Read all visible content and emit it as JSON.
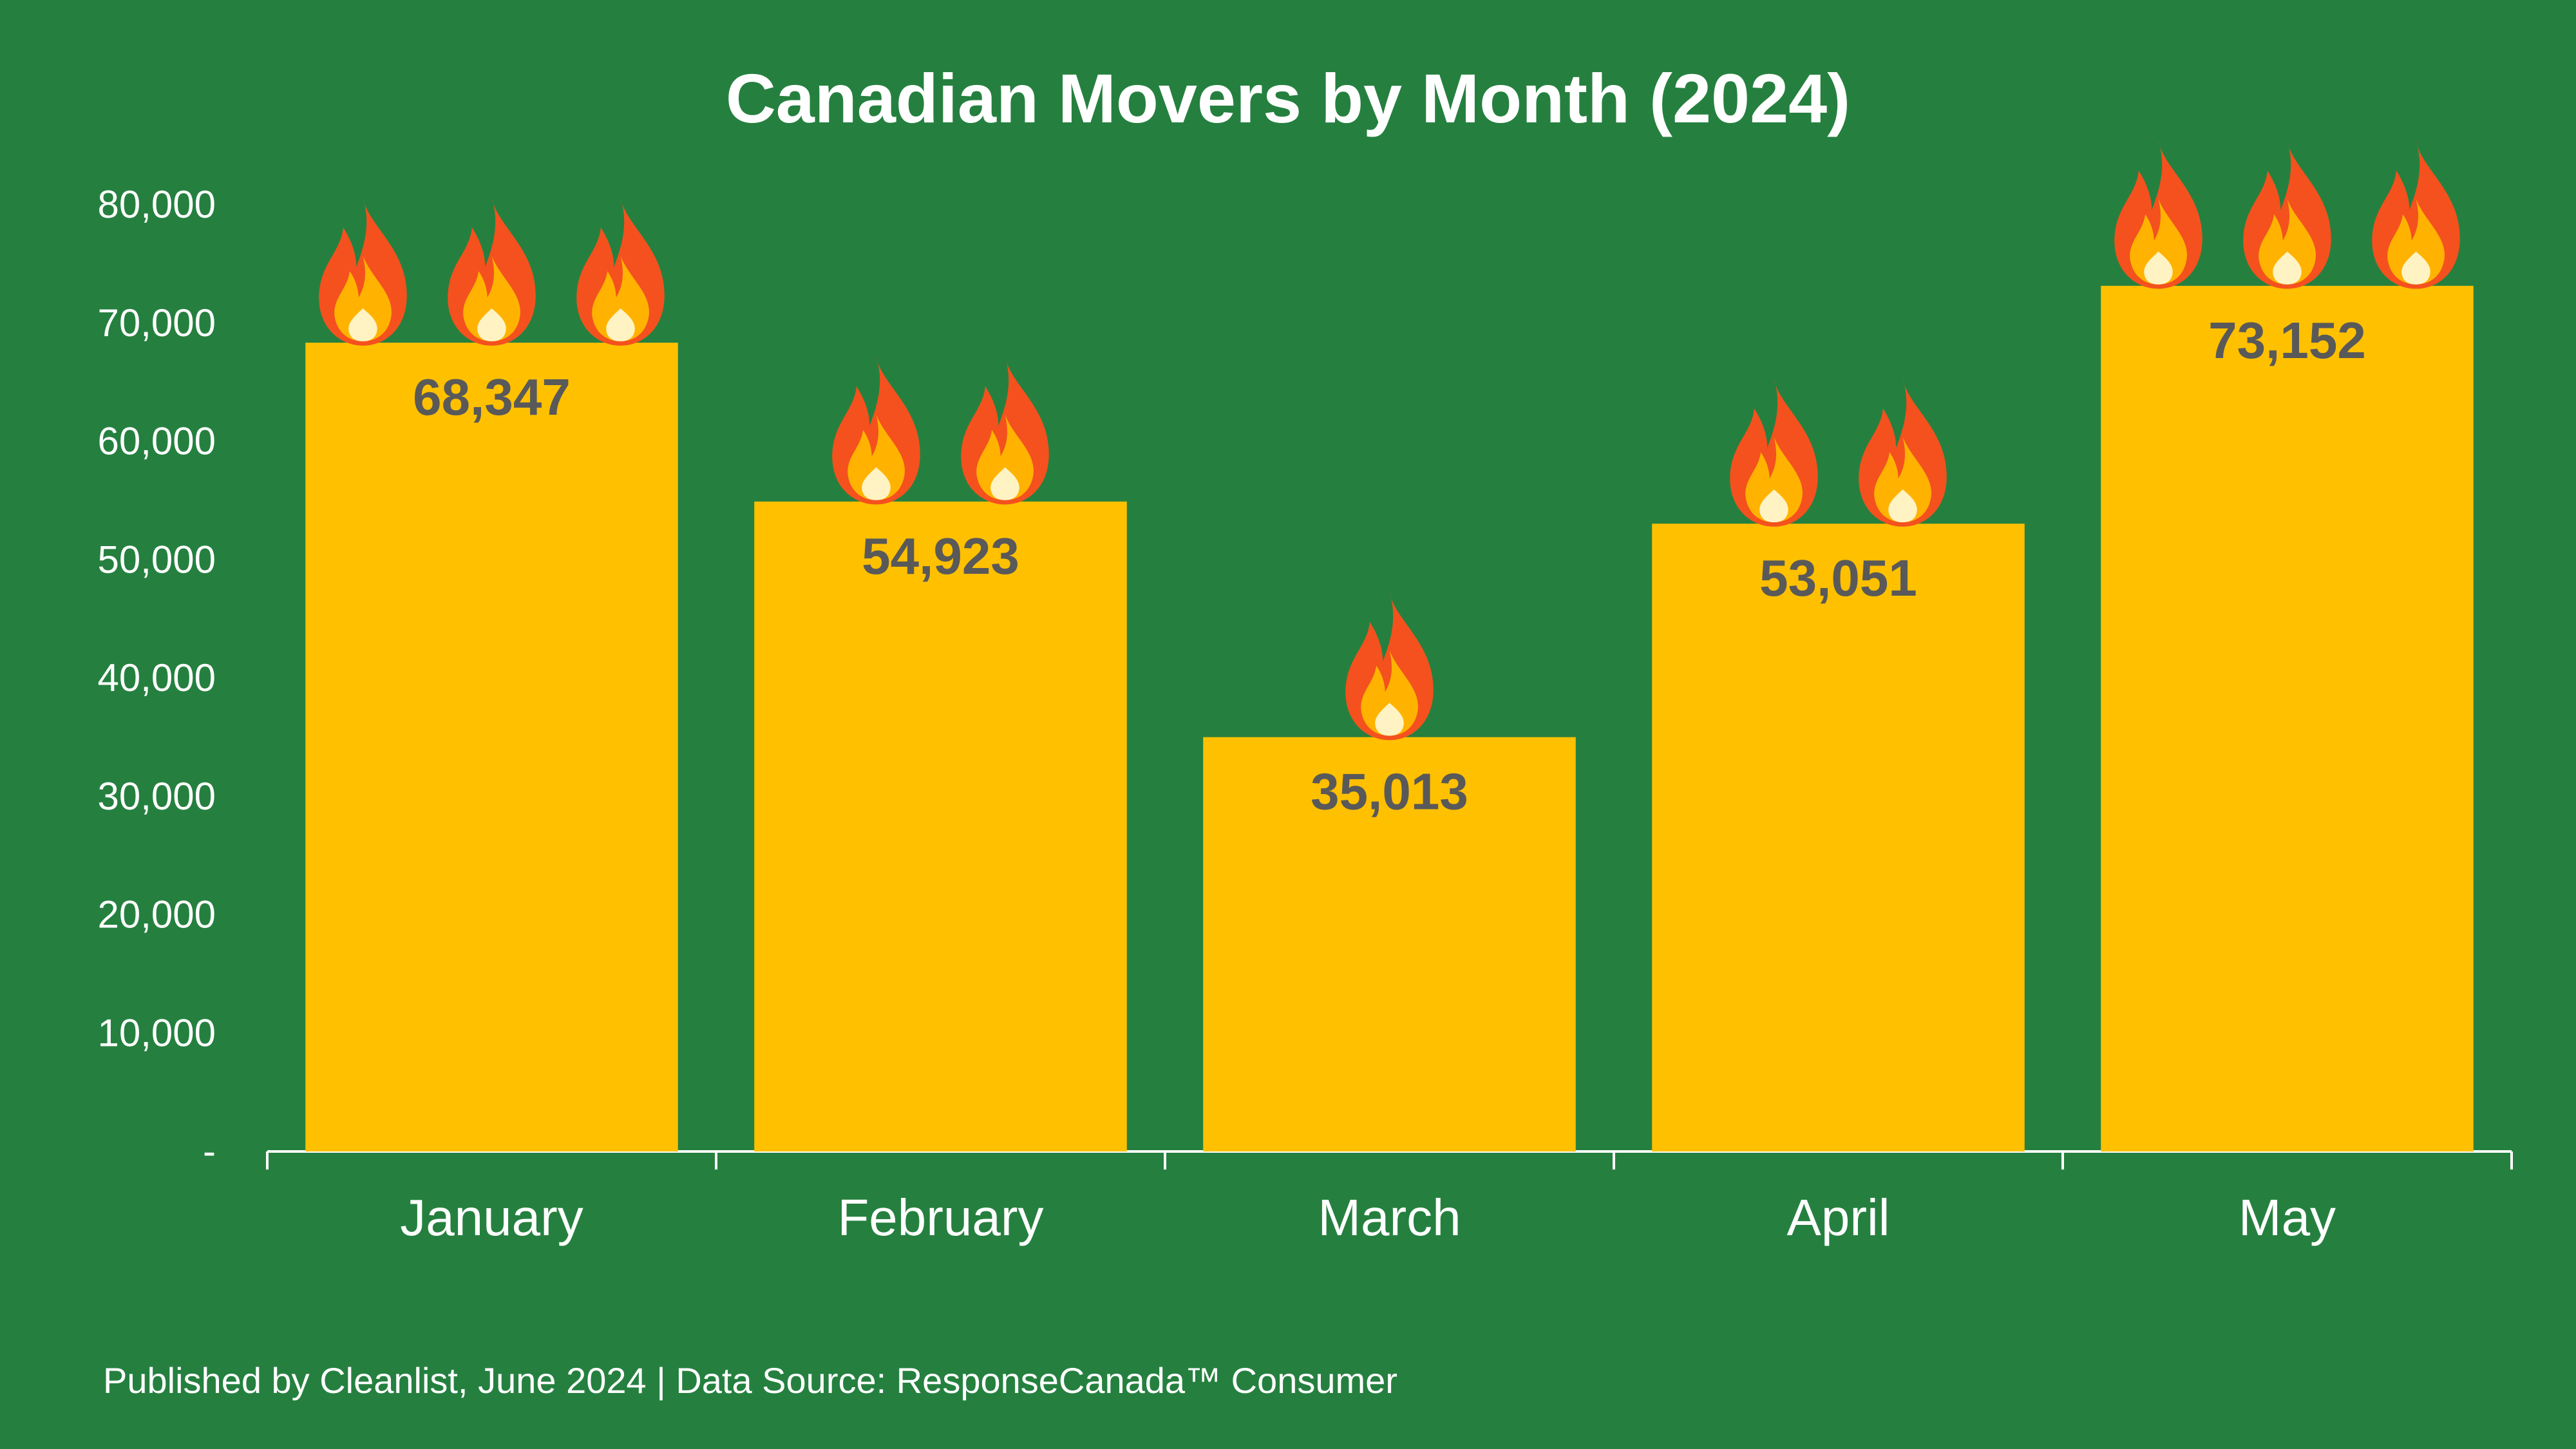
{
  "chart_data": {
    "type": "bar",
    "title": "Canadian Movers by Month (2024)",
    "xlabel": "",
    "ylabel": "",
    "categories": [
      "January",
      "February",
      "March",
      "April",
      "May"
    ],
    "values": [
      68347,
      54923,
      35013,
      53051,
      73152
    ],
    "data_labels": [
      "68,347",
      "54,923",
      "35,013",
      "53,051",
      "73,152"
    ],
    "flame_counts": [
      3,
      2,
      1,
      2,
      3
    ],
    "flame_icon": "flame-icon",
    "ylim": [
      0,
      80000
    ],
    "yticks": [
      0,
      10000,
      20000,
      30000,
      40000,
      50000,
      60000,
      70000,
      80000
    ],
    "ytick_labels": [
      "-",
      "10,000",
      "20,000",
      "30,000",
      "40,000",
      "50,000",
      "60,000",
      "70,000",
      "80,000"
    ],
    "grid": false,
    "legend": "none"
  },
  "footer": {
    "text": "Published by Cleanlist, June 2024 | Data Source: ResponseCanada™ Consumer"
  },
  "colors": {
    "background": "#25803F",
    "bar": "#FFC000",
    "data_label": "#595959",
    "text": "#FFFFFF",
    "flame_outer": "#F4511E",
    "flame_mid": "#FFB300",
    "flame_inner": "#FFF3C4"
  }
}
